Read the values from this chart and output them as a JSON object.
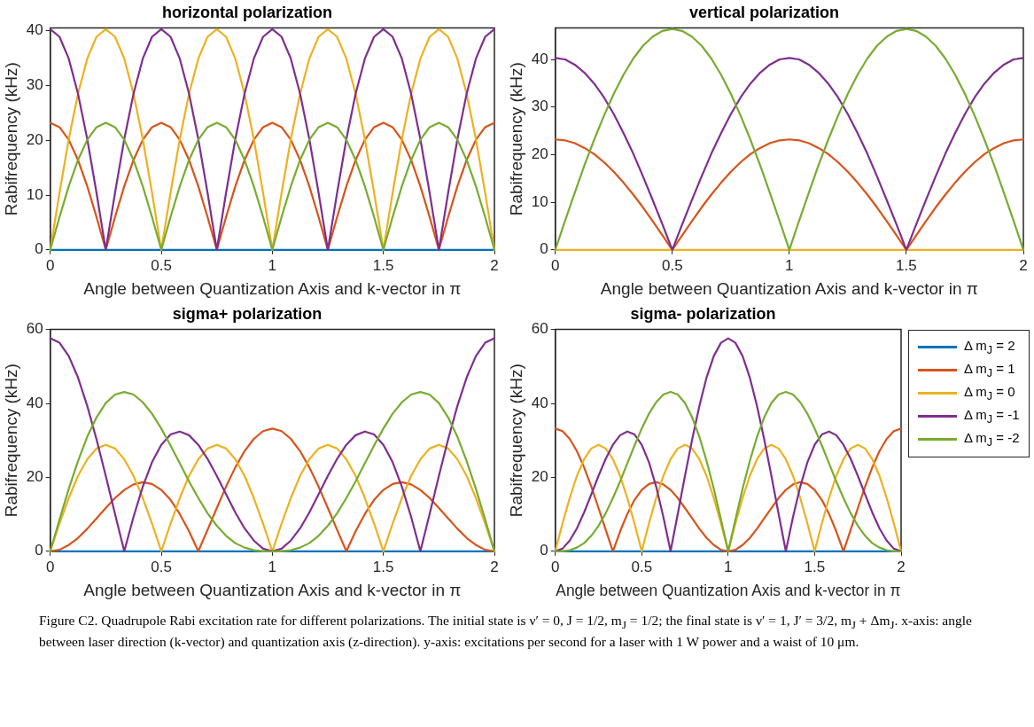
{
  "chart_data": [
    {
      "type": "line",
      "title": "horizontal polarization",
      "xlabel": "Angle between Quantization Axis and k-vector in π",
      "ylabel": "Rabifrequency (kHz)",
      "xlim": [
        0,
        2
      ],
      "xticks": [
        0,
        0.5,
        1,
        1.5,
        2
      ],
      "ylim": [
        0,
        40.5
      ],
      "yticks": [
        0,
        10,
        20,
        30,
        40
      ],
      "marker": "none",
      "line_style": "solid",
      "x": [
        0,
        0.0417,
        0.0833,
        0.125,
        0.1667,
        0.2083,
        0.25,
        0.2917,
        0.3333,
        0.375,
        0.4167,
        0.4583,
        0.5,
        0.5417,
        0.5833,
        0.625,
        0.6667,
        0.7083,
        0.75,
        0.7917,
        0.8333,
        0.875,
        0.9167,
        0.9583,
        1,
        1.0417,
        1.0833,
        1.125,
        1.1667,
        1.2083,
        1.25,
        1.2917,
        1.3333,
        1.375,
        1.4167,
        1.4583,
        1.5,
        1.5417,
        1.5833,
        1.625,
        1.6667,
        1.7083,
        1.75,
        1.7917,
        1.8333,
        1.875,
        1.9167,
        1.9583,
        2
      ],
      "series": [
        {
          "color": "#0072bd",
          "values": [
            0,
            0,
            0,
            0,
            0,
            0,
            0,
            0,
            0,
            0,
            0,
            0,
            0,
            0,
            0,
            0,
            0,
            0,
            0,
            0,
            0,
            0,
            0,
            0,
            0,
            0,
            0,
            0,
            0,
            0,
            0,
            0,
            0,
            0,
            0,
            0,
            0,
            0,
            0,
            0,
            0,
            0,
            0,
            0,
            0,
            0,
            0,
            0,
            0
          ]
        },
        {
          "color": "#d95319",
          "values": [
            23.2,
            22.4,
            20.1,
            16.4,
            11.6,
            6.0,
            0,
            6.0,
            11.6,
            16.4,
            20.1,
            22.4,
            23.2,
            22.4,
            20.1,
            16.4,
            11.6,
            6.0,
            0,
            6.0,
            11.6,
            16.4,
            20.1,
            22.4,
            23.2,
            22.4,
            20.1,
            16.4,
            11.6,
            6.0,
            0,
            6.0,
            11.6,
            16.4,
            20.1,
            22.4,
            23.2,
            22.4,
            20.1,
            16.4,
            11.6,
            6.0,
            0,
            6.0,
            11.6,
            16.4,
            20.1,
            22.4,
            23.2
          ]
        },
        {
          "color": "#edb120",
          "values": [
            0,
            10.4,
            20.2,
            28.5,
            34.9,
            38.9,
            40.3,
            38.9,
            34.9,
            28.5,
            20.2,
            10.4,
            0,
            10.4,
            20.2,
            28.5,
            34.9,
            38.9,
            40.3,
            38.9,
            34.9,
            28.5,
            20.2,
            10.4,
            0,
            10.4,
            20.2,
            28.5,
            34.9,
            38.9,
            40.3,
            38.9,
            34.9,
            28.5,
            20.2,
            10.4,
            0,
            10.4,
            20.2,
            28.5,
            34.9,
            38.9,
            40.3,
            38.9,
            34.9,
            28.5,
            20.2,
            10.4,
            0
          ]
        },
        {
          "color": "#7e2f8e",
          "values": [
            40.3,
            38.9,
            34.9,
            28.5,
            20.2,
            10.4,
            0,
            10.4,
            20.2,
            28.5,
            34.9,
            38.9,
            40.3,
            38.9,
            34.9,
            28.5,
            20.2,
            10.4,
            0,
            10.4,
            20.2,
            28.5,
            34.9,
            38.9,
            40.3,
            38.9,
            34.9,
            28.5,
            20.2,
            10.4,
            0,
            10.4,
            20.2,
            28.5,
            34.9,
            38.9,
            40.3,
            38.9,
            34.9,
            28.5,
            20.2,
            10.4,
            0,
            10.4,
            20.2,
            28.5,
            34.9,
            38.9,
            40.3
          ]
        },
        {
          "color": "#77ac30",
          "values": [
            0,
            6.0,
            11.6,
            16.4,
            20.1,
            22.4,
            23.2,
            22.4,
            20.1,
            16.4,
            11.6,
            6.0,
            0,
            6.0,
            11.6,
            16.4,
            20.1,
            22.4,
            23.2,
            22.4,
            20.1,
            16.4,
            11.6,
            6.0,
            0,
            6.0,
            11.6,
            16.4,
            20.1,
            22.4,
            23.2,
            22.4,
            20.1,
            16.4,
            11.6,
            6.0,
            0,
            6.0,
            11.6,
            16.4,
            20.1,
            22.4,
            23.2,
            22.4,
            20.1,
            16.4,
            11.6,
            6.0,
            0
          ]
        }
      ]
    },
    {
      "type": "line",
      "title": "vertical polarization",
      "xlabel": "Angle between Quantization Axis and k-vector in π",
      "ylabel": "Rabifrequency (kHz)",
      "xlim": [
        0,
        2
      ],
      "xticks": [
        0,
        0.5,
        1,
        1.5,
        2
      ],
      "ylim": [
        0,
        46.6
      ],
      "yticks": [
        0,
        10,
        20,
        30,
        40
      ],
      "marker": "none",
      "line_style": "solid",
      "x": [
        0,
        0.0417,
        0.0833,
        0.125,
        0.1667,
        0.2083,
        0.25,
        0.2917,
        0.3333,
        0.375,
        0.4167,
        0.4583,
        0.5,
        0.5417,
        0.5833,
        0.625,
        0.6667,
        0.7083,
        0.75,
        0.7917,
        0.8333,
        0.875,
        0.9167,
        0.9583,
        1,
        1.0417,
        1.0833,
        1.125,
        1.1667,
        1.2083,
        1.25,
        1.2917,
        1.3333,
        1.375,
        1.4167,
        1.4583,
        1.5,
        1.5417,
        1.5833,
        1.625,
        1.6667,
        1.7083,
        1.75,
        1.7917,
        1.8333,
        1.875,
        1.9167,
        1.9583,
        2
      ],
      "series": [
        {
          "color": "#0072bd",
          "values": [
            null,
            null,
            null,
            null,
            null,
            null,
            null,
            null,
            null,
            null,
            null,
            null,
            null,
            null,
            null,
            null,
            null,
            null,
            null,
            null,
            null,
            null,
            null,
            null,
            null,
            null,
            null,
            null,
            null,
            null,
            null,
            null,
            null,
            null,
            null,
            null,
            null,
            null,
            null,
            null,
            null,
            null,
            null,
            null,
            null,
            null,
            null,
            null,
            null
          ]
        },
        {
          "color": "#d95319",
          "values": [
            23.2,
            23.0,
            22.4,
            21.4,
            20.1,
            18.4,
            16.4,
            14.1,
            11.6,
            8.9,
            6.0,
            3.0,
            0,
            3.0,
            6.0,
            8.9,
            11.6,
            14.1,
            16.4,
            18.4,
            20.1,
            21.4,
            22.4,
            23.0,
            23.2,
            23.0,
            22.4,
            21.4,
            20.1,
            18.4,
            16.4,
            14.1,
            11.6,
            8.9,
            6.0,
            3.0,
            0,
            3.0,
            6.0,
            8.9,
            11.6,
            14.1,
            16.4,
            18.4,
            20.1,
            21.4,
            22.4,
            23.0,
            23.2
          ]
        },
        {
          "color": "#edb120",
          "values": [
            0,
            0,
            0,
            0,
            0,
            0,
            0,
            0,
            0,
            0,
            0,
            0,
            0,
            0,
            0,
            0,
            0,
            0,
            0,
            0,
            0,
            0,
            0,
            0,
            0,
            0,
            0,
            0,
            0,
            0,
            0,
            0,
            0,
            0,
            0,
            0,
            0,
            0,
            0,
            0,
            0,
            0,
            0,
            0,
            0,
            0,
            0,
            0,
            0
          ]
        },
        {
          "color": "#7e2f8e",
          "values": [
            40.3,
            40.0,
            38.9,
            37.2,
            34.9,
            32.0,
            28.5,
            24.5,
            20.2,
            15.4,
            10.4,
            5.3,
            0,
            5.3,
            10.4,
            15.4,
            20.2,
            24.5,
            28.5,
            32.0,
            34.9,
            37.2,
            38.9,
            40.0,
            40.3,
            40.0,
            38.9,
            37.2,
            34.9,
            32.0,
            28.5,
            24.5,
            20.2,
            15.4,
            10.4,
            5.3,
            0,
            5.3,
            10.4,
            15.4,
            20.2,
            24.5,
            28.5,
            32.0,
            34.9,
            37.2,
            38.9,
            40.0,
            40.3
          ]
        },
        {
          "color": "#77ac30",
          "values": [
            0,
            6.1,
            12.0,
            17.8,
            23.2,
            28.2,
            32.8,
            36.8,
            40.2,
            42.9,
            44.8,
            46.0,
            46.4,
            46.0,
            44.8,
            42.9,
            40.2,
            36.8,
            32.8,
            28.2,
            23.2,
            17.8,
            12.0,
            6.1,
            0,
            6.1,
            12.0,
            17.8,
            23.2,
            28.2,
            32.8,
            36.8,
            40.2,
            42.9,
            44.8,
            46.0,
            46.4,
            46.0,
            44.8,
            42.9,
            40.2,
            36.8,
            32.8,
            28.2,
            23.2,
            17.8,
            12.0,
            6.1,
            0
          ]
        }
      ]
    },
    {
      "type": "line",
      "title": "sigma+ polarization",
      "xlabel": "Angle between Quantization Axis and k-vector in π",
      "ylabel": "Rabifrequency (kHz)",
      "xlim": [
        0,
        2
      ],
      "xticks": [
        0,
        0.5,
        1,
        1.5,
        2
      ],
      "ylim": [
        0,
        60
      ],
      "yticks": [
        0,
        20,
        40,
        60
      ],
      "marker": "none",
      "line_style": "solid",
      "x": [
        0,
        0.0417,
        0.0833,
        0.125,
        0.1667,
        0.2083,
        0.25,
        0.2917,
        0.3333,
        0.375,
        0.4167,
        0.4583,
        0.5,
        0.5417,
        0.5833,
        0.625,
        0.6667,
        0.7083,
        0.75,
        0.7917,
        0.8333,
        0.875,
        0.9167,
        0.9583,
        1,
        1.0417,
        1.0833,
        1.125,
        1.1667,
        1.2083,
        1.25,
        1.2917,
        1.3333,
        1.375,
        1.4167,
        1.4583,
        1.5,
        1.5417,
        1.5833,
        1.625,
        1.6667,
        1.7083,
        1.75,
        1.7917,
        1.8333,
        1.875,
        1.9167,
        1.9583,
        2
      ],
      "series": [
        {
          "color": "#0072bd",
          "values": [
            0,
            0,
            0,
            0,
            0,
            0,
            0,
            0,
            0,
            0,
            0,
            0,
            0,
            0,
            0,
            0,
            0,
            0,
            0,
            0,
            0,
            0,
            0,
            0,
            0,
            0,
            0,
            0,
            0,
            0,
            0,
            0,
            0,
            0,
            0,
            0,
            0,
            0,
            0,
            0,
            0,
            0,
            0,
            0,
            0,
            0,
            0,
            0,
            0
          ]
        },
        {
          "color": "#d95319",
          "values": [
            0,
            0.4,
            1.7,
            3.6,
            6.1,
            8.9,
            11.7,
            14.4,
            16.6,
            18.1,
            18.7,
            18.2,
            16.6,
            13.9,
            10.1,
            5.4,
            0,
            5.8,
            11.7,
            17.5,
            22.7,
            27.1,
            30.4,
            32.5,
            33.2,
            32.5,
            30.4,
            27.1,
            22.7,
            17.5,
            11.7,
            5.8,
            0,
            5.4,
            10.1,
            13.9,
            16.6,
            18.2,
            18.7,
            18.1,
            16.6,
            14.4,
            11.7,
            8.9,
            6.1,
            3.6,
            1.7,
            0.4,
            0
          ]
        },
        {
          "color": "#edb120",
          "values": [
            0,
            7.5,
            14.4,
            20.4,
            24.9,
            27.8,
            28.8,
            27.8,
            24.9,
            20.4,
            14.4,
            7.5,
            0,
            7.5,
            14.4,
            20.4,
            24.9,
            27.8,
            28.8,
            27.8,
            24.9,
            20.4,
            14.4,
            7.5,
            0,
            7.5,
            14.4,
            20.4,
            24.9,
            27.8,
            28.8,
            27.8,
            24.9,
            20.4,
            14.4,
            7.5,
            0,
            7.5,
            14.4,
            20.4,
            24.9,
            27.8,
            28.8,
            27.8,
            24.9,
            20.4,
            14.4,
            7.5,
            0
          ]
        },
        {
          "color": "#7e2f8e",
          "values": [
            57.6,
            56.4,
            52.8,
            47.0,
            39.3,
            30.3,
            20.4,
            10.1,
            0,
            9.3,
            17.5,
            24.1,
            28.8,
            31.6,
            32.4,
            31.4,
            28.8,
            25.0,
            20.4,
            15.4,
            10.5,
            6.2,
            2.9,
            0.7,
            0,
            0.7,
            2.9,
            6.2,
            10.5,
            15.4,
            20.4,
            25.0,
            28.8,
            31.4,
            32.4,
            31.6,
            28.8,
            24.1,
            17.5,
            9.3,
            0,
            10.1,
            20.4,
            30.3,
            39.3,
            47.0,
            52.8,
            56.4,
            57.6
          ]
        },
        {
          "color": "#77ac30",
          "values": [
            0,
            8.6,
            16.9,
            24.4,
            31.0,
            36.2,
            40.1,
            42.4,
            43.1,
            42.4,
            40.3,
            37.2,
            33.2,
            28.6,
            23.8,
            18.9,
            14.4,
            10.3,
            6.9,
            4.2,
            2.2,
            1.0,
            0.3,
            0.0,
            0,
            0.0,
            0.3,
            1.0,
            2.2,
            4.2,
            6.9,
            10.3,
            14.4,
            18.9,
            23.8,
            28.6,
            33.2,
            37.2,
            40.3,
            42.4,
            43.1,
            42.4,
            40.1,
            36.2,
            31.0,
            24.4,
            16.9,
            8.6,
            0
          ]
        }
      ]
    },
    {
      "type": "line",
      "title": "sigma- polarization",
      "xlabel": "Angle between Quantization Axis and k-vector in π",
      "ylabel": "Rabifrequency (kHz)",
      "xlim": [
        0,
        2
      ],
      "xticks": [
        0,
        0.5,
        1,
        1.5,
        2
      ],
      "ylim": [
        0,
        60
      ],
      "yticks": [
        0,
        20,
        40,
        60
      ],
      "marker": "none",
      "line_style": "solid",
      "legend": "top right",
      "annotations": [
        "Figure C2. Quadrupole Rabi excitation rate for different polarizations. The initial state is ν′ = 0, J = 1/2, m$_{J}$ = 1/2; the final state is ν′ = 1, J′ = 3/2, m$_{J}$ + Δm$_{J}$. x-axis: angle between laser direction (k-vector) and quantization axis (z-direction). y-axis: excitations per second for a laser with 1 W power and a waist of 10 μm."
      ],
      "x": [
        0,
        0.0417,
        0.0833,
        0.125,
        0.1667,
        0.2083,
        0.25,
        0.2917,
        0.3333,
        0.375,
        0.4167,
        0.4583,
        0.5,
        0.5417,
        0.5833,
        0.625,
        0.6667,
        0.7083,
        0.75,
        0.7917,
        0.8333,
        0.875,
        0.9167,
        0.9583,
        1,
        1.0417,
        1.0833,
        1.125,
        1.1667,
        1.2083,
        1.25,
        1.2917,
        1.3333,
        1.375,
        1.4167,
        1.4583,
        1.5,
        1.5417,
        1.5833,
        1.625,
        1.6667,
        1.7083,
        1.75,
        1.7917,
        1.8333,
        1.875,
        1.9167,
        1.9583,
        2
      ],
      "series": [
        {
          "name": "Δ m$_{J}$ = 2",
          "color": "#0072bd",
          "values": [
            0,
            0,
            0,
            0,
            0,
            0,
            0,
            0,
            0,
            0,
            0,
            0,
            0,
            0,
            0,
            0,
            0,
            0,
            0,
            0,
            0,
            0,
            0,
            0,
            0,
            0,
            0,
            0,
            0,
            0,
            0,
            0,
            0,
            0,
            0,
            0,
            0,
            0,
            0,
            0,
            0,
            0,
            0,
            0,
            0,
            0,
            0,
            0,
            0
          ]
        },
        {
          "name": "Δ m$_{J}$ = 1",
          "color": "#d95319",
          "values": [
            33.2,
            32.5,
            30.4,
            27.1,
            22.7,
            17.5,
            11.7,
            5.8,
            0,
            5.4,
            10.1,
            13.9,
            16.6,
            18.2,
            18.7,
            18.1,
            16.6,
            14.4,
            11.7,
            8.9,
            6.1,
            3.6,
            1.7,
            0.4,
            0,
            0.4,
            1.7,
            3.6,
            6.1,
            8.9,
            11.7,
            14.4,
            16.6,
            18.1,
            18.7,
            18.2,
            16.6,
            13.9,
            10.1,
            5.4,
            0,
            5.8,
            11.7,
            17.5,
            22.7,
            27.1,
            30.4,
            32.5,
            33.2
          ]
        },
        {
          "name": "Δ m$_{J}$ = 0",
          "color": "#edb120",
          "values": [
            0,
            7.5,
            14.4,
            20.4,
            24.9,
            27.8,
            28.8,
            27.8,
            24.9,
            20.4,
            14.4,
            7.5,
            0,
            7.5,
            14.4,
            20.4,
            24.9,
            27.8,
            28.8,
            27.8,
            24.9,
            20.4,
            14.4,
            7.5,
            0,
            7.5,
            14.4,
            20.4,
            24.9,
            27.8,
            28.8,
            27.8,
            24.9,
            20.4,
            14.4,
            7.5,
            0,
            7.5,
            14.4,
            20.4,
            24.9,
            27.8,
            28.8,
            27.8,
            24.9,
            20.4,
            14.4,
            7.5,
            0
          ]
        },
        {
          "name": "Δ m$_{J}$ = -1",
          "color": "#7e2f8e",
          "values": [
            0,
            0.7,
            2.9,
            6.2,
            10.5,
            15.4,
            20.4,
            25.0,
            28.8,
            31.4,
            32.4,
            31.6,
            28.8,
            24.1,
            17.5,
            9.3,
            0,
            10.1,
            20.4,
            30.3,
            39.3,
            47.0,
            52.8,
            56.4,
            57.6,
            56.4,
            52.8,
            47.0,
            39.3,
            30.3,
            20.4,
            10.1,
            0,
            9.3,
            17.5,
            24.1,
            28.8,
            31.6,
            32.4,
            31.4,
            28.8,
            25.0,
            20.4,
            15.4,
            10.5,
            6.2,
            2.9,
            0.7,
            0
          ]
        },
        {
          "name": "Δ m$_{J}$ = -2",
          "color": "#77ac30",
          "values": [
            0,
            0.0,
            0.3,
            1.0,
            2.2,
            4.2,
            6.9,
            10.3,
            14.4,
            18.9,
            23.8,
            28.6,
            33.2,
            37.2,
            40.3,
            42.4,
            43.1,
            42.4,
            40.1,
            36.2,
            31.0,
            24.4,
            16.9,
            8.6,
            0,
            8.6,
            16.9,
            24.4,
            31.0,
            36.2,
            40.1,
            42.4,
            43.1,
            42.4,
            40.3,
            37.2,
            33.2,
            28.6,
            23.8,
            18.9,
            14.4,
            10.3,
            6.9,
            4.2,
            2.2,
            1.0,
            0.3,
            0.0,
            0
          ]
        }
      ]
    }
  ]
}
